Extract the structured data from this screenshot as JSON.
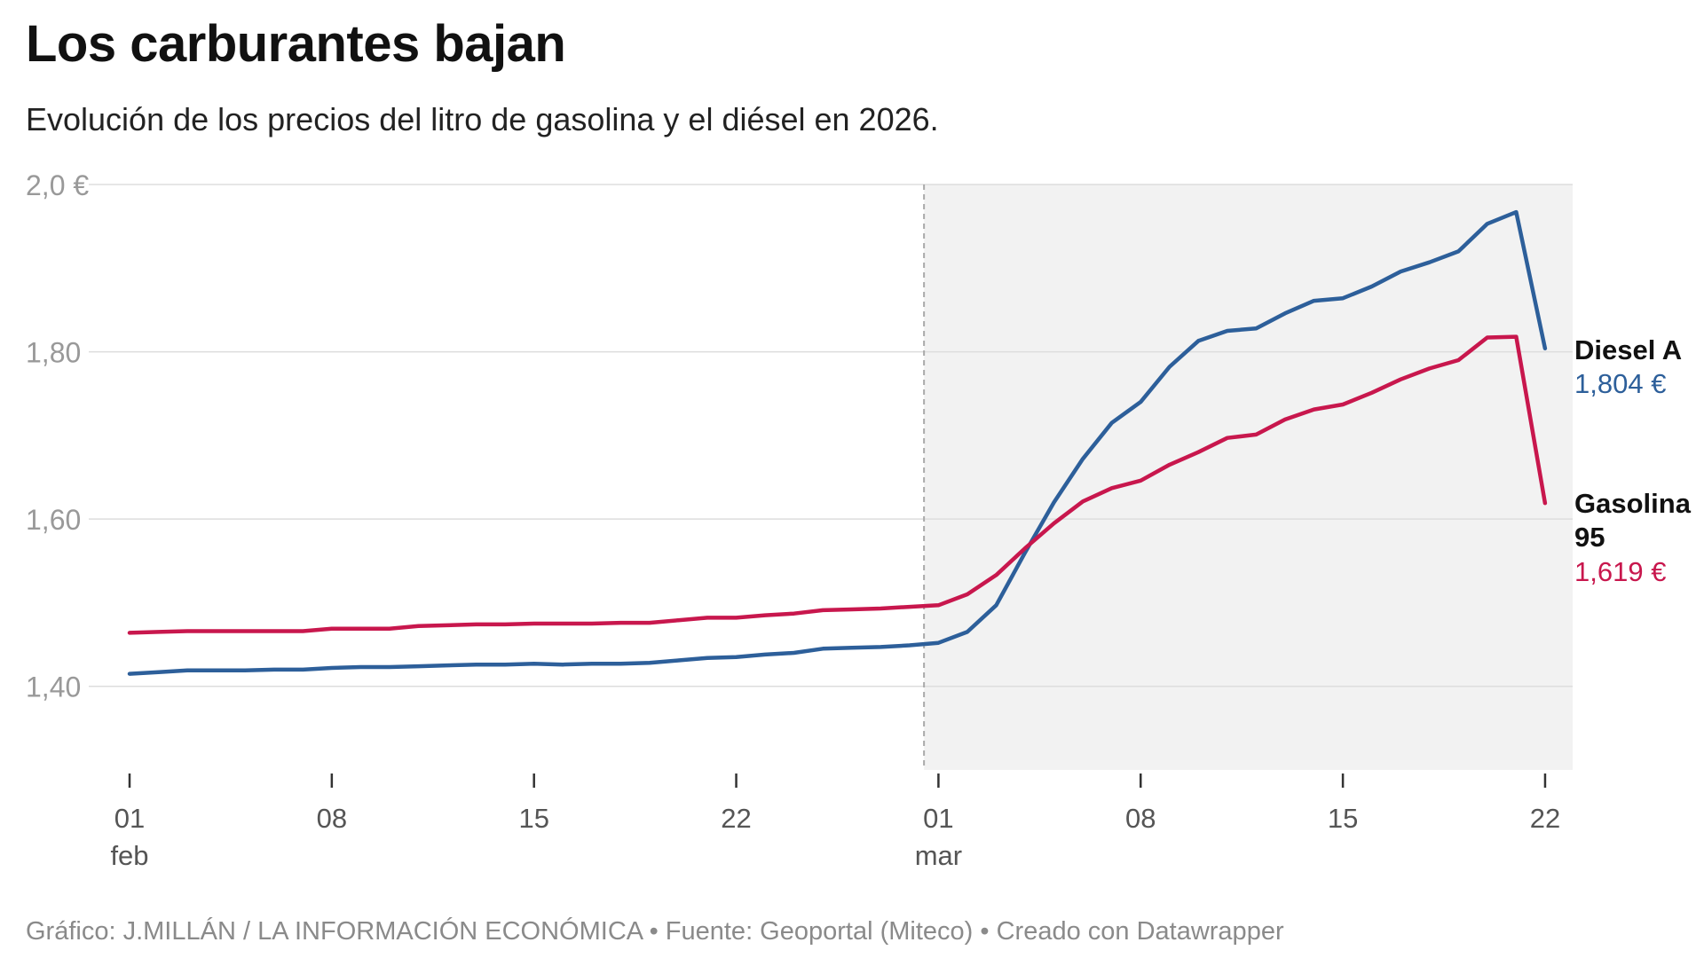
{
  "title": "Los carburantes bajan",
  "subtitle": "Evolución de los precios del litro de gasolina y el diésel en 2026.",
  "footer": "Gráfico: J.MILLÁN / LA INFORMACIÓN ECONÓMICA • Fuente: Geoportal (Miteco) • Creado con Datawrapper",
  "colors": {
    "diesel": "#2d5f9a",
    "gasolina": "#c8174d",
    "shade": "#f2f2f2",
    "grid": "#dddddd",
    "axis_text": "#999999",
    "tick_text": "#555555"
  },
  "chart_data": {
    "type": "line",
    "title": "Los carburantes bajan",
    "subtitle": "Evolución de los precios del litro de gasolina y el diésel en 2026.",
    "xlabel": "",
    "ylabel": "",
    "ylim": [
      1.3,
      2.0
    ],
    "grid": true,
    "yticks": [
      {
        "value": 2.0,
        "label": "2,0 €"
      },
      {
        "value": 1.8,
        "label": "1,80"
      },
      {
        "value": 1.6,
        "label": "1,60"
      },
      {
        "value": 1.4,
        "label": "1,40"
      }
    ],
    "xticks": [
      {
        "day": 1,
        "label": "01",
        "sublabel": "feb"
      },
      {
        "day": 8,
        "label": "08",
        "sublabel": ""
      },
      {
        "day": 15,
        "label": "15",
        "sublabel": ""
      },
      {
        "day": 22,
        "label": "22",
        "sublabel": ""
      },
      {
        "day": 29,
        "label": "01",
        "sublabel": "mar"
      },
      {
        "day": 36,
        "label": "08",
        "sublabel": ""
      },
      {
        "day": 43,
        "label": "15",
        "sublabel": ""
      },
      {
        "day": 50,
        "label": "22",
        "sublabel": ""
      }
    ],
    "x_range_days": [
      1,
      50.9
    ],
    "shaded_from_day": 28.5,
    "divider_day": 28.5,
    "x": [
      1,
      2,
      3,
      4,
      5,
      6,
      7,
      8,
      9,
      10,
      11,
      12,
      13,
      14,
      15,
      16,
      17,
      18,
      19,
      20,
      21,
      22,
      23,
      24,
      25,
      26,
      27,
      28,
      29,
      30,
      31,
      32,
      33,
      34,
      35,
      36,
      37,
      38,
      39,
      40,
      41,
      42,
      43,
      44,
      45,
      46,
      47,
      48,
      49,
      50
    ],
    "series": [
      {
        "name": "Diesel A",
        "label_lines": [
          "Diesel A"
        ],
        "end_label": "1,804 €",
        "color": "#2d5f9a",
        "values": [
          1.415,
          1.417,
          1.419,
          1.419,
          1.419,
          1.42,
          1.42,
          1.422,
          1.423,
          1.423,
          1.424,
          1.425,
          1.426,
          1.426,
          1.427,
          1.426,
          1.427,
          1.427,
          1.428,
          1.431,
          1.434,
          1.435,
          1.438,
          1.44,
          1.445,
          1.446,
          1.447,
          1.449,
          1.452,
          1.465,
          1.497,
          1.56,
          1.62,
          1.672,
          1.715,
          1.74,
          1.782,
          1.813,
          1.825,
          1.828,
          1.846,
          1.861,
          1.864,
          1.878,
          1.896,
          1.907,
          1.92,
          1.953,
          1.967,
          1.804
        ]
      },
      {
        "name": "Gasolina 95",
        "label_lines": [
          "Gasolina",
          "95"
        ],
        "end_label": "1,619 €",
        "color": "#c8174d",
        "values": [
          1.464,
          1.465,
          1.466,
          1.466,
          1.466,
          1.466,
          1.466,
          1.469,
          1.469,
          1.469,
          1.472,
          1.473,
          1.474,
          1.474,
          1.475,
          1.475,
          1.475,
          1.476,
          1.476,
          1.479,
          1.482,
          1.482,
          1.485,
          1.487,
          1.491,
          1.492,
          1.493,
          1.495,
          1.497,
          1.51,
          1.533,
          1.565,
          1.595,
          1.621,
          1.637,
          1.646,
          1.665,
          1.68,
          1.697,
          1.701,
          1.719,
          1.731,
          1.737,
          1.751,
          1.767,
          1.78,
          1.79,
          1.817,
          1.818,
          1.619
        ]
      }
    ]
  }
}
